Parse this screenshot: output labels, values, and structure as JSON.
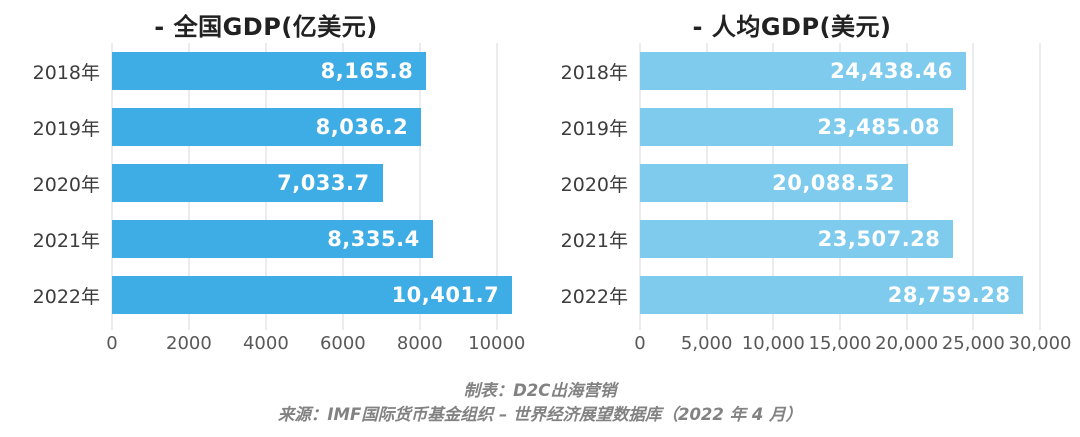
{
  "figure": {
    "footer": {
      "line1": "制表：D2C出海营销",
      "line2": "来源：IMF国际货币基金组织 – 世界经济展望数据库（2022 年 4 月）"
    }
  },
  "chart_data": [
    {
      "type": "bar",
      "orientation": "horizontal",
      "title": "- 全国GDP(亿美元)",
      "categories": [
        "2018年",
        "2019年",
        "2020年",
        "2021年",
        "2022年"
      ],
      "values": [
        8165.8,
        8036.2,
        7033.7,
        8335.4,
        10401.7
      ],
      "value_labels": [
        "8,165.8",
        "8,036.2",
        "7,033.7",
        "8,335.4",
        "10,401.7"
      ],
      "xlim": [
        0,
        10500
      ],
      "ticks": [
        {
          "value": 0,
          "label": "0"
        },
        {
          "value": 2000,
          "label": "2000"
        },
        {
          "value": 4000,
          "label": "4000"
        },
        {
          "value": 6000,
          "label": "6000"
        },
        {
          "value": 8000,
          "label": "8000"
        },
        {
          "value": 10000,
          "label": "10000"
        }
      ],
      "bar_color": "#3EACE5",
      "grid": true,
      "legend": "none"
    },
    {
      "type": "bar",
      "orientation": "horizontal",
      "title": "- 人均GDP(美元)",
      "categories": [
        "2018年",
        "2019年",
        "2020年",
        "2021年",
        "2022年"
      ],
      "values": [
        24438.46,
        23485.08,
        20088.52,
        23507.28,
        28759.28
      ],
      "value_labels": [
        "24,438.46",
        "23,485.08",
        "20,088.52",
        "23,507.28",
        "28,759.28"
      ],
      "xlim": [
        0,
        30000
      ],
      "ticks": [
        {
          "value": 0,
          "label": "0"
        },
        {
          "value": 5000,
          "label": "5,000"
        },
        {
          "value": 10000,
          "label": "10,000"
        },
        {
          "value": 15000,
          "label": "15,000"
        },
        {
          "value": 20000,
          "label": "20,000"
        },
        {
          "value": 25000,
          "label": "25,000"
        },
        {
          "value": 30000,
          "label": "30,000"
        }
      ],
      "bar_color": "#7ECBEE",
      "grid": true,
      "legend": "none"
    }
  ]
}
